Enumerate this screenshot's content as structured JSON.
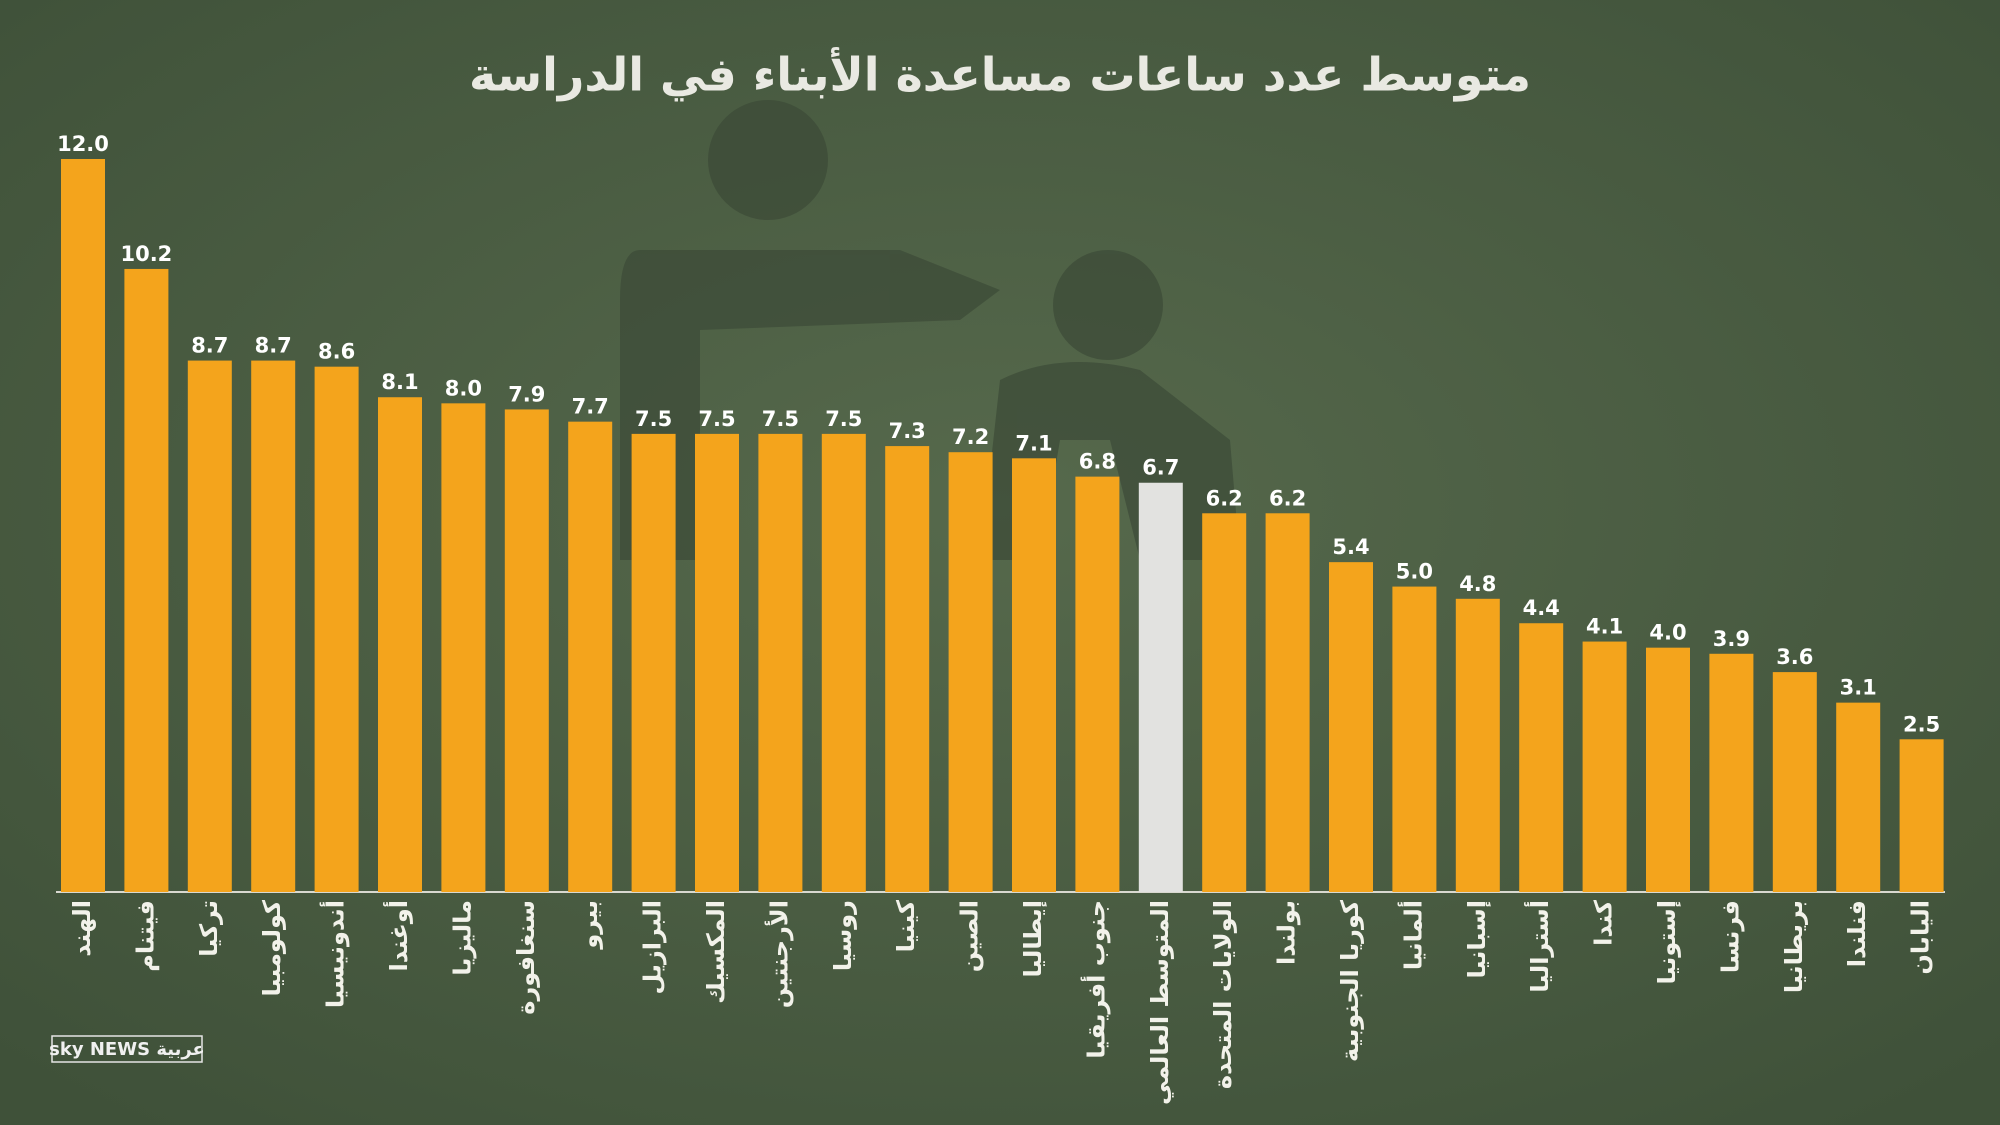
{
  "chart_data": {
    "type": "bar",
    "title": "متوسط عدد ساعات مساعدة الأبناء في الدراسة",
    "categories": [
      "الهند",
      "فيتنام",
      "تركيا",
      "كولومبيا",
      "أندونيسيا",
      "أوغندا",
      "ماليزيا",
      "سنغافورة",
      "بيرو",
      "البرازيل",
      "المكسيك",
      "الأرجنتين",
      "روسيا",
      "كينيا",
      "الصين",
      "إيطاليا",
      "جنوب أفريقيا",
      "المتوسط العالمي",
      "الولايات المتحدة",
      "بولندا",
      "كوريا الجنوبية",
      "ألمانيا",
      "إسبانيا",
      "أستراليا",
      "كندا",
      "إستونيا",
      "فرنسا",
      "بريطانيا",
      "فنلندا",
      "اليابان"
    ],
    "values": [
      12.0,
      10.2,
      8.7,
      8.7,
      8.6,
      8.1,
      8.0,
      7.9,
      7.7,
      7.5,
      7.5,
      7.5,
      7.5,
      7.3,
      7.2,
      7.1,
      6.8,
      6.7,
      6.2,
      6.2,
      5.4,
      5.0,
      4.8,
      4.4,
      4.1,
      4.0,
      3.9,
      3.6,
      3.1,
      2.5
    ],
    "value_labels": [
      "12.0",
      "10.2",
      "8.7",
      "8.7",
      "8.6",
      "8.1",
      "8.0",
      "7.9",
      "7.7",
      "7.5",
      "7.5",
      "7.5",
      "7.5",
      "7.3",
      "7.2",
      "7.1",
      "6.8",
      "6.7",
      "6.2",
      "6.2",
      "5.4",
      "5.0",
      "4.8",
      "4.4",
      "4.1",
      "4.0",
      "3.9",
      "3.6",
      "3.1",
      "2.5"
    ],
    "colors": [
      "#f4a41c",
      "#f4a41c",
      "#f4a41c",
      "#f4a41c",
      "#f4a41c",
      "#f4a41c",
      "#f4a41c",
      "#f4a41c",
      "#f4a41c",
      "#f4a41c",
      "#f4a41c",
      "#f4a41c",
      "#f4a41c",
      "#f4a41c",
      "#f4a41c",
      "#f4a41c",
      "#f4a41c",
      "#e2e2e0",
      "#f4a41c",
      "#f4a41c",
      "#f4a41c",
      "#f4a41c",
      "#f4a41c",
      "#f4a41c",
      "#f4a41c",
      "#f4a41c",
      "#f4a41c",
      "#f4a41c",
      "#f4a41c",
      "#f4a41c"
    ],
    "logo": "sky NEWS عربية"
  }
}
